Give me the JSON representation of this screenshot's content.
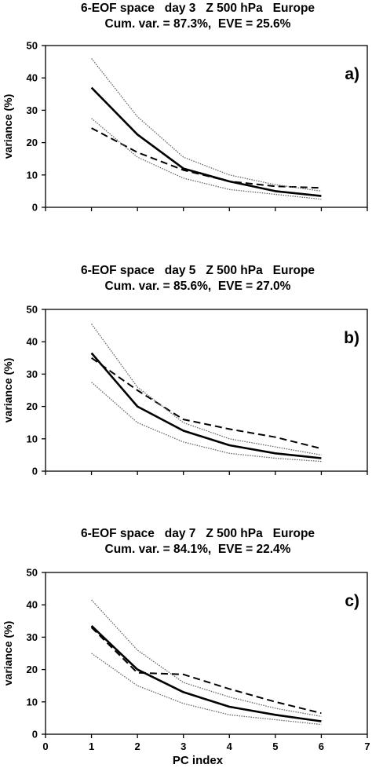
{
  "x_label": "PC index",
  "chart_data": [
    {
      "type": "line",
      "title": "6-EOF space   day 3   Z 500 hPa   Europe",
      "subtitle": "Cum. var. = 87.3%,  EVE = 25.6%",
      "panel_label": "a)",
      "ylabel": "variance (%)",
      "xlabel": "",
      "xlim": [
        0,
        7
      ],
      "ylim": [
        0,
        50
      ],
      "x_ticks": [
        "",
        "",
        "",
        "",
        "",
        "",
        "",
        ""
      ],
      "y_ticks": [
        "0",
        "10",
        "20",
        "30",
        "40",
        "50"
      ],
      "x": [
        1,
        2,
        3,
        4,
        5,
        6
      ],
      "series": [
        {
          "style": "solid",
          "values": [
            37,
            22.5,
            12,
            8,
            5,
            3.5
          ]
        },
        {
          "style": "dashed",
          "values": [
            24.5,
            17,
            11.5,
            8,
            6.5,
            6
          ]
        },
        {
          "style": "upper",
          "values": [
            46,
            28,
            15.5,
            10,
            7,
            5
          ]
        },
        {
          "style": "lower",
          "values": [
            27.5,
            15.5,
            9,
            5.5,
            4,
            2.5
          ]
        }
      ]
    },
    {
      "type": "line",
      "title": "6-EOF space   day 5   Z 500 hPa   Europe",
      "subtitle": "Cum. var. = 85.6%,  EVE = 27.0%",
      "panel_label": "b)",
      "ylabel": "variance (%)",
      "xlabel": "",
      "xlim": [
        0,
        7
      ],
      "ylim": [
        0,
        50
      ],
      "x_ticks": [
        "",
        "",
        "",
        "",
        "",
        "",
        "",
        ""
      ],
      "y_ticks": [
        "0",
        "10",
        "20",
        "30",
        "40",
        "50"
      ],
      "x": [
        1,
        2,
        3,
        4,
        5,
        6
      ],
      "series": [
        {
          "style": "solid",
          "values": [
            36.5,
            20,
            12.5,
            8,
            5.5,
            4
          ]
        },
        {
          "style": "dashed",
          "values": [
            35,
            25,
            16,
            13,
            10.5,
            7
          ]
        },
        {
          "style": "upper",
          "values": [
            45.5,
            26,
            15,
            10,
            7.5,
            5
          ]
        },
        {
          "style": "lower",
          "values": [
            27.5,
            15,
            9,
            5.5,
            4,
            3
          ]
        }
      ]
    },
    {
      "type": "line",
      "title": "6-EOF space   day 7   Z 500 hPa   Europe",
      "subtitle": "Cum. var. = 84.1%,  EVE = 22.4%",
      "panel_label": "c)",
      "ylabel": "variance (%)",
      "xlabel": "PC index",
      "xlim": [
        0,
        7
      ],
      "ylim": [
        0,
        50
      ],
      "x_ticks": [
        "0",
        "1",
        "2",
        "3",
        "4",
        "5",
        "6",
        "7"
      ],
      "y_ticks": [
        "0",
        "10",
        "20",
        "30",
        "40",
        "50"
      ],
      "x": [
        1,
        2,
        3,
        4,
        5,
        6
      ],
      "series": [
        {
          "style": "solid",
          "values": [
            33.5,
            20,
            13,
            8.5,
            6,
            4
          ]
        },
        {
          "style": "dashed",
          "values": [
            33,
            19,
            18.5,
            14,
            10,
            6.5
          ]
        },
        {
          "style": "upper",
          "values": [
            41.5,
            26,
            16,
            11.5,
            8,
            5.5
          ]
        },
        {
          "style": "lower",
          "values": [
            25,
            15,
            9.5,
            6,
            4.5,
            3
          ]
        }
      ]
    }
  ]
}
